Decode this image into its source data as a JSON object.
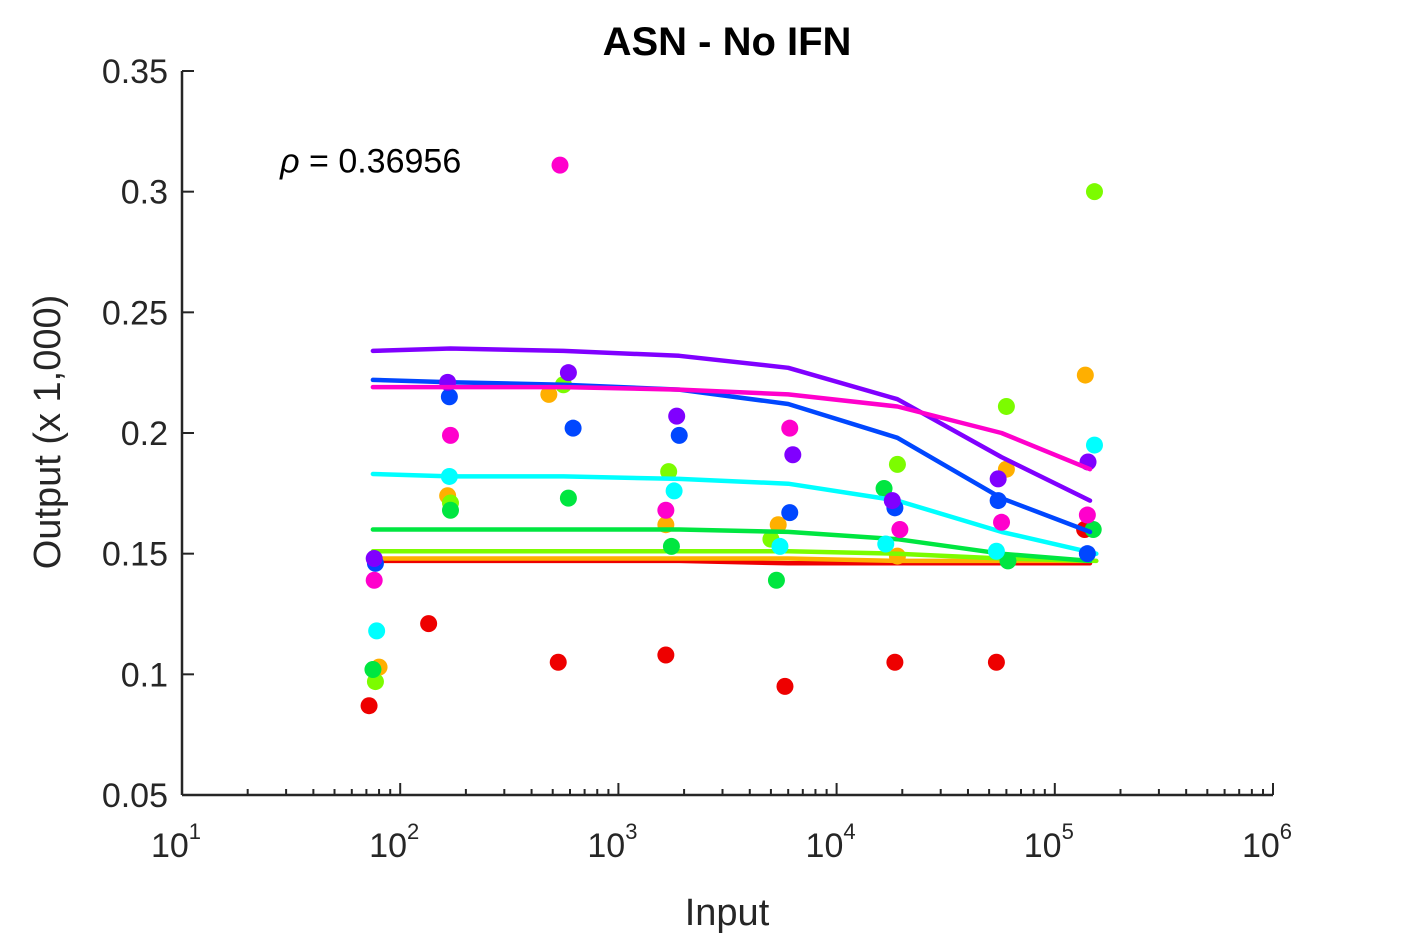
{
  "chart_data": {
    "type": "scatter",
    "title": "ASN - No IFN",
    "xlabel": "Input",
    "ylabel": "Output (x 1,000)",
    "xscale": "log",
    "xlim": [
      10,
      1000000
    ],
    "ylim": [
      0.05,
      0.35
    ],
    "grid": false,
    "x_ticks": [
      {
        "base": "10",
        "exp": "1",
        "value": 10
      },
      {
        "base": "10",
        "exp": "2",
        "value": 100
      },
      {
        "base": "10",
        "exp": "3",
        "value": 1000
      },
      {
        "base": "10",
        "exp": "4",
        "value": 10000
      },
      {
        "base": "10",
        "exp": "5",
        "value": 100000
      },
      {
        "base": "10",
        "exp": "6",
        "value": 1000000
      }
    ],
    "y_ticks": [
      "0.05",
      "0.1",
      "0.15",
      "0.2",
      "0.25",
      "0.3",
      "0.35"
    ],
    "annotation": {
      "symbol": "ρ",
      "text": " = 0.36956",
      "x": 30,
      "y": 0.313
    },
    "series": [
      {
        "color": "#ee0000",
        "points": [
          [
            72,
            0.087
          ],
          [
            135,
            0.121
          ],
          [
            530,
            0.105
          ],
          [
            1650,
            0.108
          ],
          [
            5800,
            0.095
          ],
          [
            18500,
            0.105
          ],
          [
            54000,
            0.105
          ],
          [
            137000,
            0.16
          ]
        ],
        "line": [
          [
            75,
            0.147
          ],
          [
            170,
            0.147
          ],
          [
            560,
            0.147
          ],
          [
            1900,
            0.147
          ],
          [
            6000,
            0.146
          ],
          [
            19000,
            0.146
          ],
          [
            57000,
            0.146
          ],
          [
            145000,
            0.146
          ]
        ]
      },
      {
        "color": "#ffaf00",
        "points": [
          [
            80,
            0.103
          ],
          [
            165,
            0.174
          ],
          [
            480,
            0.216
          ],
          [
            1650,
            0.162
          ],
          [
            5400,
            0.162
          ],
          [
            19000,
            0.149
          ],
          [
            60000,
            0.185
          ],
          [
            138000,
            0.224
          ]
        ],
        "line": [
          [
            75,
            0.148
          ],
          [
            170,
            0.148
          ],
          [
            560,
            0.148
          ],
          [
            1900,
            0.148
          ],
          [
            6000,
            0.148
          ],
          [
            19000,
            0.147
          ],
          [
            57000,
            0.147
          ],
          [
            145000,
            0.147
          ]
        ]
      },
      {
        "color": "#7cfc00",
        "points": [
          [
            77,
            0.097
          ],
          [
            170,
            0.171
          ],
          [
            560,
            0.22
          ],
          [
            1700,
            0.184
          ],
          [
            5000,
            0.156
          ],
          [
            19000,
            0.187
          ],
          [
            60000,
            0.211
          ],
          [
            152000,
            0.3
          ]
        ],
        "line": [
          [
            75,
            0.151
          ],
          [
            170,
            0.151
          ],
          [
            560,
            0.151
          ],
          [
            1900,
            0.151
          ],
          [
            6000,
            0.151
          ],
          [
            19000,
            0.15
          ],
          [
            57000,
            0.148
          ],
          [
            155000,
            0.147
          ]
        ]
      },
      {
        "color": "#00e640",
        "points": [
          [
            75,
            0.102
          ],
          [
            170,
            0.168
          ],
          [
            590,
            0.173
          ],
          [
            1750,
            0.153
          ],
          [
            5300,
            0.139
          ],
          [
            16500,
            0.177
          ],
          [
            61000,
            0.147
          ],
          [
            150000,
            0.16
          ]
        ],
        "line": [
          [
            75,
            0.16
          ],
          [
            170,
            0.16
          ],
          [
            560,
            0.16
          ],
          [
            1900,
            0.16
          ],
          [
            6000,
            0.159
          ],
          [
            19000,
            0.156
          ],
          [
            57000,
            0.15
          ],
          [
            145000,
            0.147
          ]
        ]
      },
      {
        "color": "#00ffff",
        "points": [
          [
            78,
            0.118
          ],
          [
            168,
            0.182
          ],
          [
            1800,
            0.176
          ],
          [
            5500,
            0.153
          ],
          [
            16800,
            0.154
          ],
          [
            54000,
            0.151
          ],
          [
            152000,
            0.195
          ]
        ],
        "line": [
          [
            75,
            0.183
          ],
          [
            170,
            0.182
          ],
          [
            560,
            0.182
          ],
          [
            1900,
            0.181
          ],
          [
            6000,
            0.179
          ],
          [
            19000,
            0.172
          ],
          [
            57000,
            0.159
          ],
          [
            155000,
            0.15
          ]
        ]
      },
      {
        "color": "#0047ff",
        "points": [
          [
            77,
            0.146
          ],
          [
            168,
            0.215
          ],
          [
            620,
            0.202
          ],
          [
            1900,
            0.199
          ],
          [
            6100,
            0.167
          ],
          [
            18500,
            0.169
          ],
          [
            55000,
            0.172
          ],
          [
            141000,
            0.15
          ]
        ],
        "line": [
          [
            75,
            0.222
          ],
          [
            170,
            0.221
          ],
          [
            560,
            0.22
          ],
          [
            1900,
            0.218
          ],
          [
            6000,
            0.212
          ],
          [
            19000,
            0.198
          ],
          [
            57000,
            0.173
          ],
          [
            145000,
            0.159
          ]
        ]
      },
      {
        "color": "#8000ff",
        "points": [
          [
            76,
            0.148
          ],
          [
            165,
            0.221
          ],
          [
            590,
            0.225
          ],
          [
            1850,
            0.207
          ],
          [
            6300,
            0.191
          ],
          [
            18000,
            0.172
          ],
          [
            55000,
            0.181
          ],
          [
            142000,
            0.188
          ]
        ],
        "line": [
          [
            75,
            0.234
          ],
          [
            170,
            0.235
          ],
          [
            560,
            0.234
          ],
          [
            1900,
            0.232
          ],
          [
            6000,
            0.227
          ],
          [
            19000,
            0.214
          ],
          [
            57000,
            0.19
          ],
          [
            145000,
            0.172
          ]
        ]
      },
      {
        "color": "#ff00cc",
        "points": [
          [
            76,
            0.139
          ],
          [
            170,
            0.199
          ],
          [
            540,
            0.311
          ],
          [
            1650,
            0.168
          ],
          [
            6100,
            0.202
          ],
          [
            19500,
            0.16
          ],
          [
            57000,
            0.163
          ],
          [
            141000,
            0.166
          ]
        ],
        "line": [
          [
            75,
            0.219
          ],
          [
            170,
            0.219
          ],
          [
            560,
            0.219
          ],
          [
            1900,
            0.218
          ],
          [
            6000,
            0.216
          ],
          [
            19000,
            0.211
          ],
          [
            57000,
            0.2
          ],
          [
            145000,
            0.185
          ]
        ]
      }
    ]
  }
}
